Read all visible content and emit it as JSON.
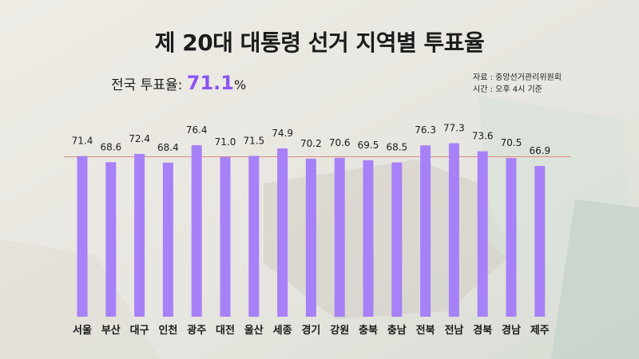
{
  "title": "제 20대 대통령 선거 지역별 투표율",
  "national": {
    "label": "전국 투표율:",
    "value": "71.1",
    "unit": "%"
  },
  "source": {
    "line1": "자료 : 중앙선거관리위원회",
    "line2": "시간 : 오후 4시 기준"
  },
  "colors": {
    "bar": "#a781f7",
    "accent": "#8a55f2",
    "refline": "#d98a7a"
  },
  "chart_data": {
    "type": "bar",
    "title": "제 20대 대통령 선거 지역별 투표율",
    "categories": [
      "서울",
      "부산",
      "대구",
      "인천",
      "광주",
      "대전",
      "울산",
      "세종",
      "경기",
      "강원",
      "충북",
      "충남",
      "전북",
      "전남",
      "경북",
      "경남",
      "제주"
    ],
    "values": [
      71.4,
      68.6,
      72.4,
      68.4,
      76.4,
      71.0,
      71.5,
      74.9,
      70.2,
      70.6,
      69.5,
      68.5,
      76.3,
      77.3,
      73.6,
      70.5,
      66.9
    ],
    "value_labels": [
      "71.4",
      "68.6",
      "72.4",
      "68.4",
      "76.4",
      "71.0",
      "71.5",
      "74.9",
      "70.2",
      "70.6",
      "69.5",
      "68.5",
      "76.3",
      "77.3",
      "73.6",
      "70.5",
      "66.9"
    ],
    "reference_line": 71.1,
    "xlabel": "",
    "ylabel": "",
    "grid": false
  }
}
